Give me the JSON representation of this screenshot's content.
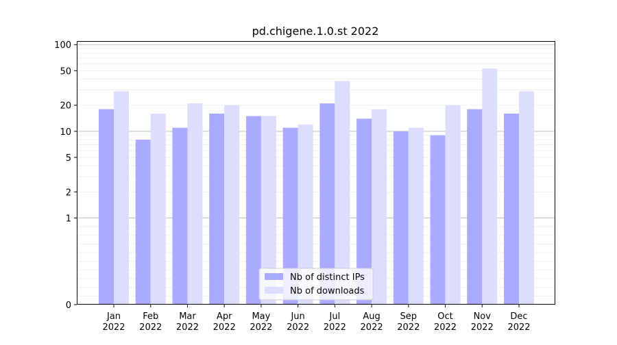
{
  "chart_data": {
    "type": "bar",
    "title": "pd.chigene.1.0.st 2022",
    "xlabel": "",
    "ylabel": "",
    "yscale": "symlog",
    "ylim": [
      0,
      110
    ],
    "yticks": [
      0,
      1,
      2,
      5,
      10,
      20,
      50,
      100
    ],
    "categories": [
      {
        "month": "Jan",
        "year": "2022"
      },
      {
        "month": "Feb",
        "year": "2022"
      },
      {
        "month": "Mar",
        "year": "2022"
      },
      {
        "month": "Apr",
        "year": "2022"
      },
      {
        "month": "May",
        "year": "2022"
      },
      {
        "month": "Jun",
        "year": "2022"
      },
      {
        "month": "Jul",
        "year": "2022"
      },
      {
        "month": "Aug",
        "year": "2022"
      },
      {
        "month": "Sep",
        "year": "2022"
      },
      {
        "month": "Oct",
        "year": "2022"
      },
      {
        "month": "Nov",
        "year": "2022"
      },
      {
        "month": "Dec",
        "year": "2022"
      }
    ],
    "series": [
      {
        "name": "Nb of distinct IPs",
        "color": "#aaaaff",
        "values": [
          18,
          8,
          11,
          16,
          15,
          11,
          21,
          14,
          10,
          9,
          18,
          16
        ]
      },
      {
        "name": "Nb of downloads",
        "color": "#ddddff",
        "values": [
          29,
          16,
          21,
          20,
          15,
          12,
          38,
          18,
          11,
          20,
          53,
          29
        ]
      }
    ],
    "legend": "bottom-center",
    "grid": true
  }
}
